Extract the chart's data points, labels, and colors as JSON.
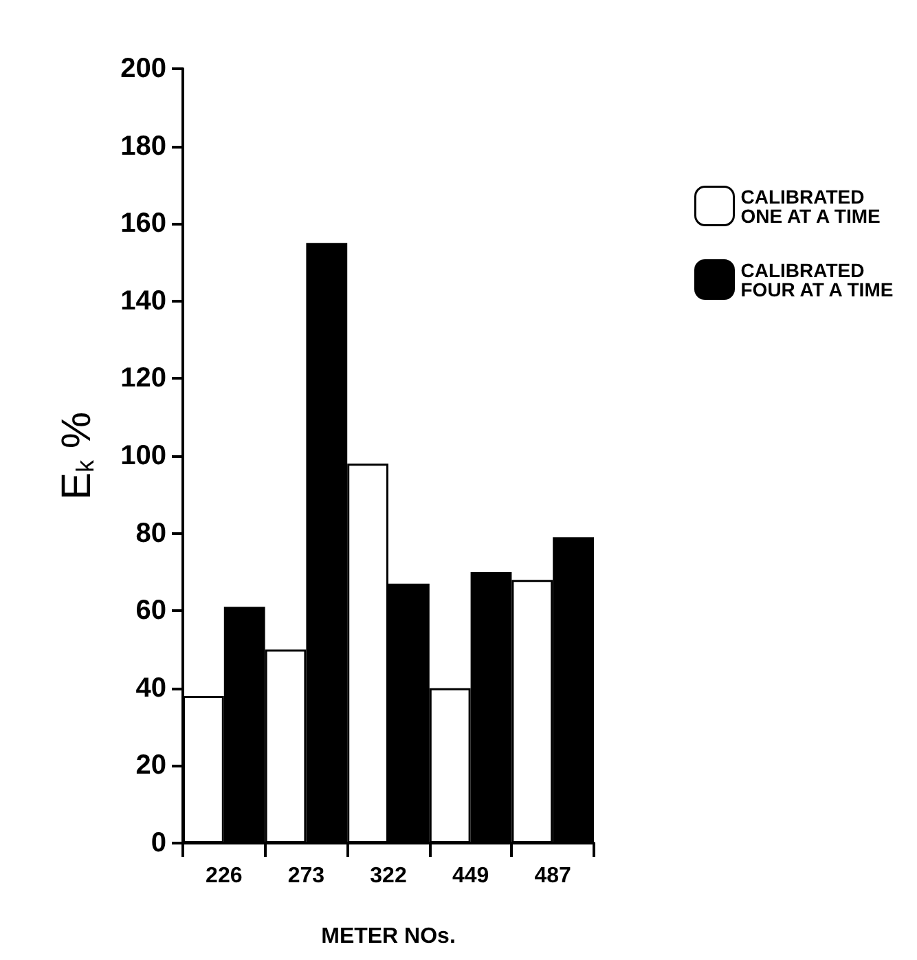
{
  "chart_data": {
    "type": "bar",
    "xlabel": "METER NOs.",
    "ylabel": "E$_{k}$ %",
    "categories": [
      "226",
      "273",
      "322",
      "449",
      "487"
    ],
    "series": [
      {
        "name": "CALIBRATED\nONE AT A TIME",
        "color": "#ffffff",
        "values": [
          38,
          50,
          98,
          40,
          68
        ]
      },
      {
        "name": "CALIBRATED\nFOUR AT A TIME",
        "color": "#000000",
        "values": [
          61,
          155,
          67,
          70,
          79
        ]
      }
    ],
    "ylim": [
      0,
      200
    ],
    "yticks": [
      0,
      20,
      40,
      60,
      80,
      100,
      120,
      140,
      160,
      180,
      200
    ],
    "grid": false,
    "legend": "right"
  }
}
